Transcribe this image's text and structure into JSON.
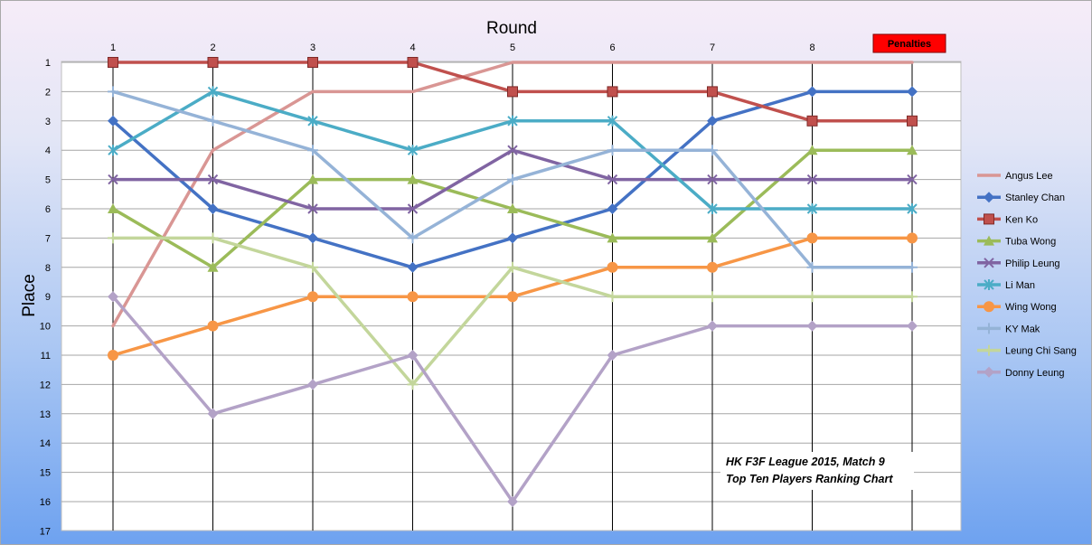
{
  "chart_data": {
    "type": "line",
    "xlabel": "Round",
    "ylabel": "Place",
    "x_ticks": [
      "1",
      "2",
      "3",
      "4",
      "5",
      "6",
      "7",
      "8",
      "Penalties"
    ],
    "y_ticks": [
      1,
      2,
      3,
      4,
      5,
      6,
      7,
      8,
      9,
      10,
      11,
      12,
      13,
      14,
      15,
      16,
      17
    ],
    "ylim": [
      1,
      17
    ],
    "y_inverted": true,
    "grid": true,
    "legend_position": "right",
    "annotation": [
      "HK F3F League 2015, Match 9",
      "Top Ten Players Ranking Chart"
    ],
    "series": [
      {
        "name": "Angus Lee",
        "color": "#d99694",
        "marker": "none",
        "values": [
          10,
          4,
          2,
          2,
          1,
          1,
          1,
          1,
          1
        ]
      },
      {
        "name": "Stanley Chan",
        "color": "#4472c4",
        "marker": "diamond",
        "values": [
          3,
          6,
          7,
          8,
          7,
          6,
          3,
          2,
          2
        ]
      },
      {
        "name": "Ken Ko",
        "color": "#c0504d",
        "marker": "square",
        "values": [
          1,
          1,
          1,
          1,
          2,
          2,
          2,
          3,
          3
        ]
      },
      {
        "name": "Tuba Wong",
        "color": "#9bbb59",
        "marker": "triangle",
        "values": [
          6,
          8,
          5,
          5,
          6,
          7,
          7,
          4,
          4
        ]
      },
      {
        "name": "Philip Leung",
        "color": "#8064a2",
        "marker": "x",
        "values": [
          5,
          5,
          6,
          6,
          4,
          5,
          5,
          5,
          5
        ]
      },
      {
        "name": "Li Man",
        "color": "#4bacc6",
        "marker": "star",
        "values": [
          4,
          2,
          3,
          4,
          3,
          3,
          6,
          6,
          6
        ]
      },
      {
        "name": "Wing Wong",
        "color": "#f79646",
        "marker": "circle",
        "values": [
          11,
          10,
          9,
          9,
          9,
          8,
          8,
          7,
          7
        ]
      },
      {
        "name": "KY Mak",
        "color": "#95b3d7",
        "marker": "plus",
        "values": [
          2,
          3,
          4,
          7,
          5,
          4,
          4,
          8,
          8
        ]
      },
      {
        "name": "Leung Chi Sang",
        "color": "#c3d69b",
        "marker": "plus",
        "values": [
          7,
          7,
          8,
          12,
          8,
          9,
          9,
          9,
          9
        ]
      },
      {
        "name": "Donny Leung",
        "color": "#b3a2c7",
        "marker": "diamond",
        "values": [
          9,
          13,
          12,
          11,
          16,
          11,
          10,
          10,
          10
        ]
      }
    ]
  }
}
